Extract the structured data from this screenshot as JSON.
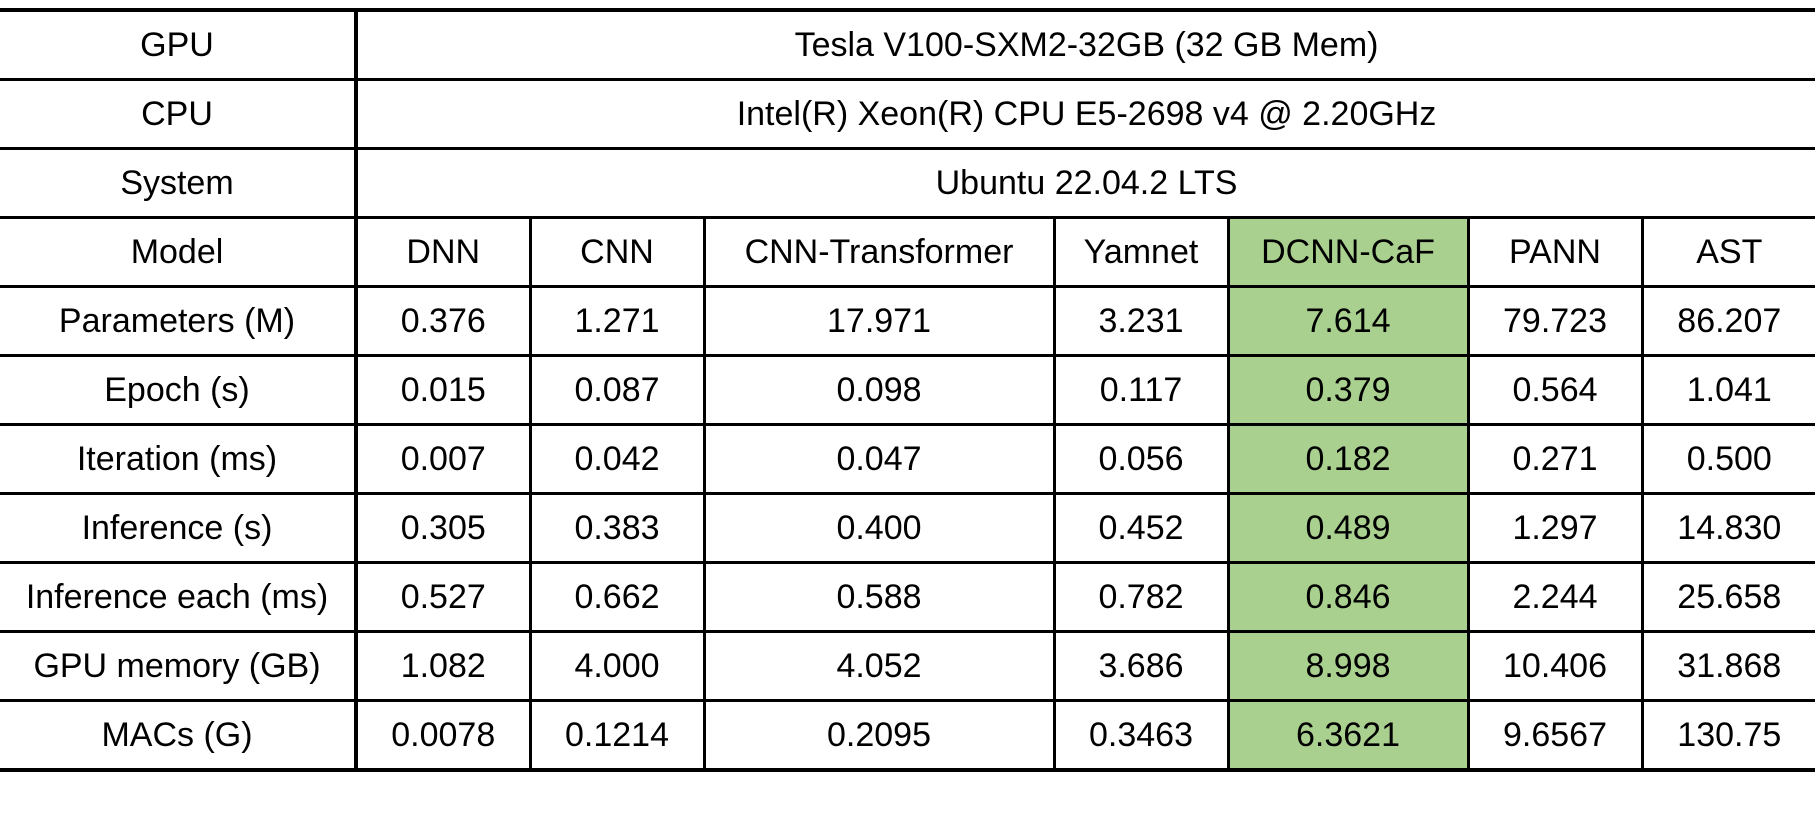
{
  "header_rows": [
    {
      "label": "GPU",
      "value": "Tesla V100-SXM2-32GB (32 GB Mem)"
    },
    {
      "label": "CPU",
      "value": "Intel(R) Xeon(R) CPU E5-2698 v4 @ 2.20GHz"
    },
    {
      "label": "System",
      "value": "Ubuntu 22.04.2 LTS"
    }
  ],
  "model_row": {
    "label": "Model",
    "models": [
      "DNN",
      "CNN",
      "CNN-Transformer",
      "Yamnet",
      "DCNN-CaF",
      "PANN",
      "AST"
    ]
  },
  "highlight_color": "#a9d08e",
  "highlight_model": "DCNN-CaF",
  "metric_rows": [
    {
      "label": "Parameters (M)",
      "values": [
        "0.376",
        "1.271",
        "17.971",
        "3.231",
        "7.614",
        "79.723",
        "86.207"
      ]
    },
    {
      "label": "Epoch (s)",
      "values": [
        "0.015",
        "0.087",
        "0.098",
        "0.117",
        "0.379",
        "0.564",
        "1.041"
      ]
    },
    {
      "label": "Iteration (ms)",
      "values": [
        "0.007",
        "0.042",
        "0.047",
        "0.056",
        "0.182",
        "0.271",
        "0.500"
      ]
    },
    {
      "label": "Inference (s)",
      "values": [
        "0.305",
        "0.383",
        "0.400",
        "0.452",
        "0.489",
        "1.297",
        "14.830"
      ]
    },
    {
      "label": "Inference each (ms)",
      "values": [
        "0.527",
        "0.662",
        "0.588",
        "0.782",
        "0.846",
        "2.244",
        "25.658"
      ]
    },
    {
      "label": "GPU memory (GB)",
      "values": [
        "1.082",
        "4.000",
        "4.052",
        "3.686",
        "8.998",
        "10.406",
        "31.868"
      ]
    },
    {
      "label": "MACs (G)",
      "values": [
        "0.0078",
        "0.1214",
        "0.2095",
        "0.3463",
        "6.3621",
        "9.6567",
        "130.75"
      ]
    }
  ]
}
